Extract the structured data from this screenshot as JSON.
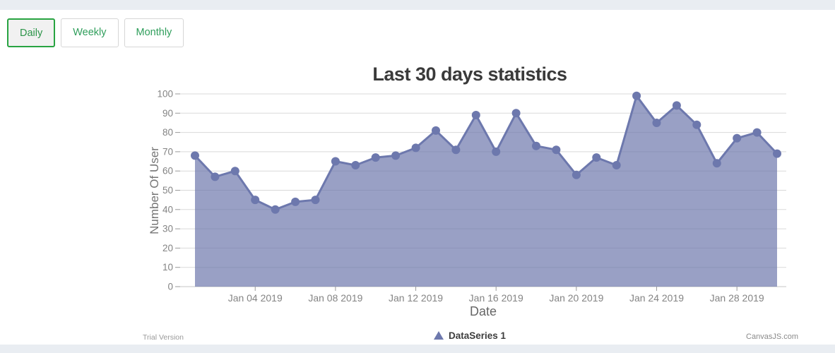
{
  "toolbar": {
    "buttons": [
      {
        "label": "Daily",
        "active": true
      },
      {
        "label": "Weekly",
        "active": false
      },
      {
        "label": "Monthly",
        "active": false
      }
    ]
  },
  "chart_data": {
    "type": "area",
    "title": "Last 30 days statistics",
    "xlabel": "Date",
    "ylabel": "Number Of User",
    "x": [
      "Jan 01 2019",
      "Jan 02 2019",
      "Jan 03 2019",
      "Jan 04 2019",
      "Jan 05 2019",
      "Jan 06 2019",
      "Jan 07 2019",
      "Jan 08 2019",
      "Jan 09 2019",
      "Jan 10 2019",
      "Jan 11 2019",
      "Jan 12 2019",
      "Jan 13 2019",
      "Jan 14 2019",
      "Jan 15 2019",
      "Jan 16 2019",
      "Jan 17 2019",
      "Jan 18 2019",
      "Jan 19 2019",
      "Jan 20 2019",
      "Jan 21 2019",
      "Jan 22 2019",
      "Jan 23 2019",
      "Jan 24 2019",
      "Jan 25 2019",
      "Jan 26 2019",
      "Jan 27 2019",
      "Jan 28 2019",
      "Jan 29 2019",
      "Jan 30 2019"
    ],
    "series": [
      {
        "name": "DataSeries 1",
        "values": [
          68,
          57,
          60,
          45,
          40,
          44,
          45,
          65,
          63,
          67,
          68,
          72,
          81,
          71,
          89,
          70,
          90,
          73,
          71,
          58,
          67,
          63,
          99,
          85,
          94,
          84,
          64,
          77,
          80,
          69
        ]
      }
    ],
    "ylim": [
      0,
      100
    ],
    "y_tick_step": 10,
    "x_ticks": [
      {
        "index": 3,
        "label": "Jan 04 2019"
      },
      {
        "index": 7,
        "label": "Jan 08 2019"
      },
      {
        "index": 11,
        "label": "Jan 12 2019"
      },
      {
        "index": 15,
        "label": "Jan 16 2019"
      },
      {
        "index": 19,
        "label": "Jan 20 2019"
      },
      {
        "index": 23,
        "label": "Jan 24 2019"
      },
      {
        "index": 27,
        "label": "Jan 28 2019"
      }
    ],
    "grid": true,
    "legend_position": "bottom",
    "colors": {
      "line": "#6D78AD",
      "marker": "#6D78AD",
      "fill": "rgba(109,120,173,0.70)",
      "grid": "#d9d9d9",
      "axis_line": "#c5c5c5",
      "tick": "#9a9a9a",
      "tick_label": "#848484",
      "axis_title": "#6e6e6e",
      "title": "#3a3a3a"
    }
  },
  "footer": {
    "trial_label": "Trial Version",
    "credit_label": "CanvasJS.com"
  }
}
